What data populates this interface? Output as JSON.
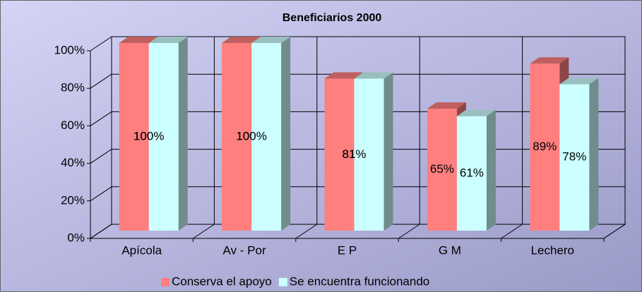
{
  "chart_data": {
    "type": "bar3d",
    "title": "Beneficiarios 2000",
    "categories": [
      "Apícola",
      "Av - Por",
      "E P",
      "G M",
      "Lechero"
    ],
    "series": [
      {
        "name": "Conserva el apoyo",
        "color": "#ff7f7f",
        "values": [
          100,
          100,
          81,
          65,
          89
        ],
        "value_labels": [
          "100%",
          "100%",
          "81%",
          "65%",
          "89%"
        ]
      },
      {
        "name": "Se encuentra funcionando",
        "color": "#ccffff",
        "values": [
          100,
          100,
          81,
          61,
          78
        ],
        "value_labels": [
          "100%",
          "100%",
          "81%",
          "61%",
          "78%"
        ]
      }
    ],
    "ylim": [
      0,
      100
    ],
    "yticks": [
      {
        "value": 0,
        "label": "0%"
      },
      {
        "value": 20,
        "label": "20%"
      },
      {
        "value": 40,
        "label": "40%"
      },
      {
        "value": 60,
        "label": "60%"
      },
      {
        "value": 80,
        "label": "80%"
      },
      {
        "value": 100,
        "label": "100%"
      }
    ],
    "grid": true,
    "legend": "bottom"
  }
}
